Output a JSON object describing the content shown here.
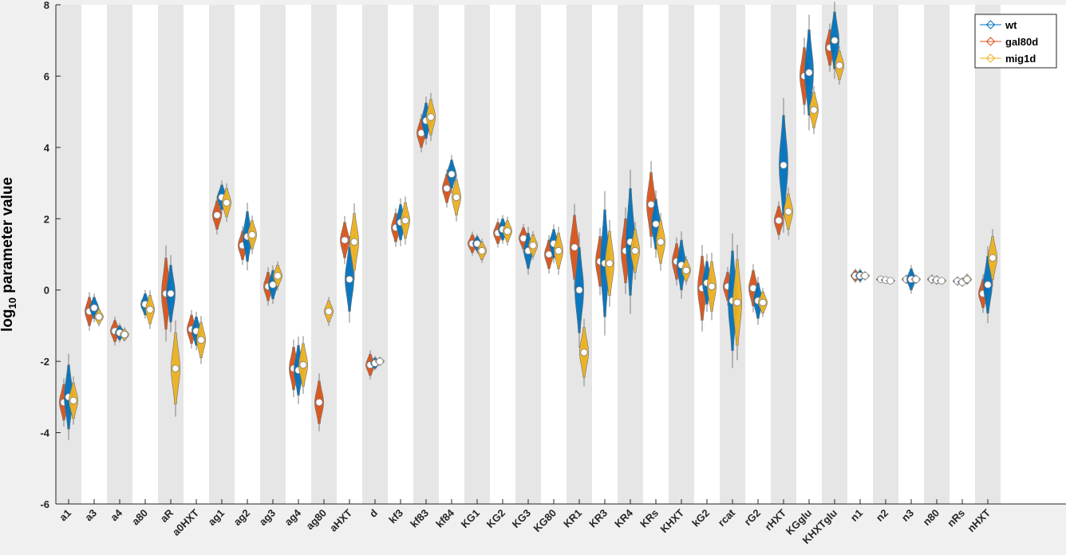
{
  "chart_data": {
    "type": "violin",
    "ylabel": "log10 parameter value",
    "ylabel_main": "log",
    "ylabel_sub": "10",
    "ylabel_rest": " parameter value",
    "ylim": [
      -6,
      8
    ],
    "yticks": [
      -6,
      -4,
      -2,
      0,
      2,
      4,
      6,
      8
    ],
    "grid": false,
    "legend_position": "top-right",
    "categories": [
      "a1",
      "a3",
      "a4",
      "a80",
      "aR",
      "a0HXT",
      "ag1",
      "ag2",
      "ag3",
      "ag4",
      "ag80",
      "aHXT",
      "d",
      "kf3",
      "kf83",
      "kf84",
      "KG1",
      "KG2",
      "KG3",
      "KG80",
      "KR1",
      "KR3",
      "KR4",
      "KRs",
      "KHXT",
      "kG2",
      "rcat",
      "rG2",
      "rHXT",
      "KGglu",
      "KHXTglu",
      "n1",
      "n2",
      "n3",
      "n80",
      "nRs",
      "nHXT"
    ],
    "series": [
      {
        "name": "wt",
        "color": "#0072bd",
        "medians": [
          -3.0,
          -0.5,
          -1.2,
          -0.4,
          -0.1,
          -1.15,
          2.6,
          1.5,
          0.15,
          -2.25,
          null,
          0.3,
          -2.05,
          1.9,
          4.75,
          3.25,
          1.3,
          1.7,
          1.1,
          1.3,
          0.0,
          0.75,
          1.35,
          1.85,
          0.7,
          0.2,
          -0.3,
          -0.3,
          3.5,
          6.1,
          7.0,
          0.4,
          0.28,
          0.3,
          0.28,
          0.22,
          0.15
        ],
        "spread": [
          0.9,
          0.3,
          0.2,
          0.3,
          0.8,
          0.4,
          0.35,
          0.7,
          0.4,
          0.7,
          null,
          0.9,
          0.15,
          0.5,
          0.5,
          0.4,
          0.2,
          0.3,
          0.5,
          0.4,
          1.2,
          1.5,
          1.5,
          0.7,
          0.7,
          0.6,
          1.4,
          0.5,
          1.4,
          1.2,
          0.8,
          0.15,
          0.08,
          0.3,
          0.1,
          0.1,
          0.8
        ]
      },
      {
        "name": "gal80d",
        "color": "#d95319",
        "medians": [
          -3.15,
          -0.6,
          -1.15,
          null,
          -0.1,
          -1.1,
          2.1,
          1.25,
          0.1,
          -2.2,
          -3.15,
          1.4,
          -2.1,
          1.75,
          4.4,
          2.85,
          1.3,
          1.6,
          1.45,
          1.0,
          1.2,
          0.8,
          1.1,
          2.4,
          0.8,
          0.05,
          0.1,
          0.05,
          1.95,
          6.0,
          6.8,
          0.4,
          0.3,
          0.3,
          0.3,
          0.25,
          -0.1
        ],
        "spread": [
          0.5,
          0.4,
          0.3,
          null,
          1.0,
          0.4,
          0.4,
          0.4,
          0.4,
          0.6,
          0.6,
          0.5,
          0.3,
          0.4,
          0.4,
          0.4,
          0.25,
          0.3,
          0.3,
          0.4,
          0.9,
          0.7,
          0.9,
          0.9,
          0.5,
          0.9,
          0.4,
          0.5,
          0.4,
          0.8,
          0.5,
          0.15,
          0.08,
          0.1,
          0.1,
          0.1,
          0.4
        ]
      },
      {
        "name": "mig1d",
        "color": "#edb120",
        "medians": [
          -3.1,
          -0.75,
          -1.25,
          -0.55,
          -2.2,
          -1.4,
          2.45,
          1.55,
          0.4,
          -2.1,
          -0.6,
          1.35,
          -2.0,
          1.95,
          4.85,
          2.6,
          1.1,
          1.65,
          1.25,
          1.1,
          -1.75,
          0.75,
          1.1,
          1.35,
          0.55,
          0.1,
          -0.35,
          -0.35,
          2.2,
          5.05,
          6.3,
          0.4,
          0.26,
          0.3,
          0.26,
          0.3,
          0.9
        ],
        "spread": [
          0.5,
          0.2,
          0.15,
          0.4,
          1.0,
          0.5,
          0.4,
          0.4,
          0.3,
          0.6,
          0.3,
          0.8,
          0.1,
          0.5,
          0.5,
          0.5,
          0.25,
          0.3,
          0.3,
          0.5,
          0.7,
          0.9,
          0.6,
          0.6,
          0.3,
          0.7,
          1.2,
          0.3,
          0.5,
          0.5,
          0.4,
          0.1,
          0.06,
          0.1,
          0.08,
          0.12,
          0.6
        ]
      }
    ]
  },
  "legend": {
    "entries": [
      "wt",
      "gal80d",
      "mig1d"
    ]
  },
  "colors": {
    "band": "#e6e6e6",
    "plot_bg": "#ffffff",
    "figure_bg": "#f0f0f0",
    "median_fill": "#ffffff",
    "whisker": "#808080"
  }
}
